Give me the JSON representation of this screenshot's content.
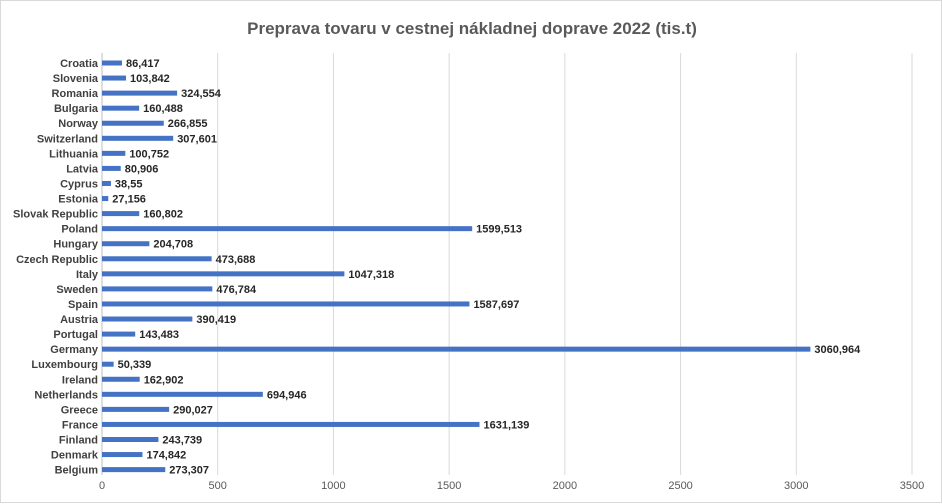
{
  "chart_data": {
    "type": "bar",
    "orientation": "horizontal",
    "title": "Preprava tovaru v cestnej nákladnej doprave 2022 (tis.t)",
    "categories": [
      "Croatia",
      "Slovenia",
      "Romania",
      "Bulgaria",
      "Norway",
      "Switzerland",
      "Lithuania",
      "Latvia",
      "Cyprus",
      "Estonia",
      "Slovak Republic",
      "Poland",
      "Hungary",
      "Czech Republic",
      "Italy",
      "Sweden",
      "Spain",
      "Austria",
      "Portugal",
      "Germany",
      "Luxembourg",
      "Ireland",
      "Netherlands",
      "Greece",
      "France",
      "Finland",
      "Denmark",
      "Belgium"
    ],
    "values": [
      86.417,
      103.842,
      324.554,
      160.488,
      266.855,
      307.601,
      100.752,
      80.906,
      38.55,
      27.156,
      160.802,
      1599.513,
      204.708,
      473.688,
      1047.318,
      476.784,
      1587.697,
      390.419,
      143.483,
      3060.964,
      50.339,
      162.902,
      694.946,
      290.027,
      1631.139,
      243.739,
      174.842,
      273.307
    ],
    "value_labels": [
      "86,417",
      "103,842",
      "324,554",
      "160,488",
      "266,855",
      "307,601",
      "100,752",
      "80,906",
      "38,55",
      "27,156",
      "160,802",
      "1599,513",
      "204,708",
      "473,688",
      "1047,318",
      "476,784",
      "1587,697",
      "390,419",
      "143,483",
      "3060,964",
      "50,339",
      "162,902",
      "694,946",
      "290,027",
      "1631,139",
      "243,739",
      "174,842",
      "273,307"
    ],
    "xlim": [
      0,
      3500
    ],
    "x_ticks": [
      0,
      500,
      1000,
      1500,
      2000,
      2500,
      3000,
      3500
    ],
    "grid": "vertical",
    "legend": "none",
    "bar_color": "#4472c4",
    "xlabel": "",
    "ylabel": ""
  }
}
